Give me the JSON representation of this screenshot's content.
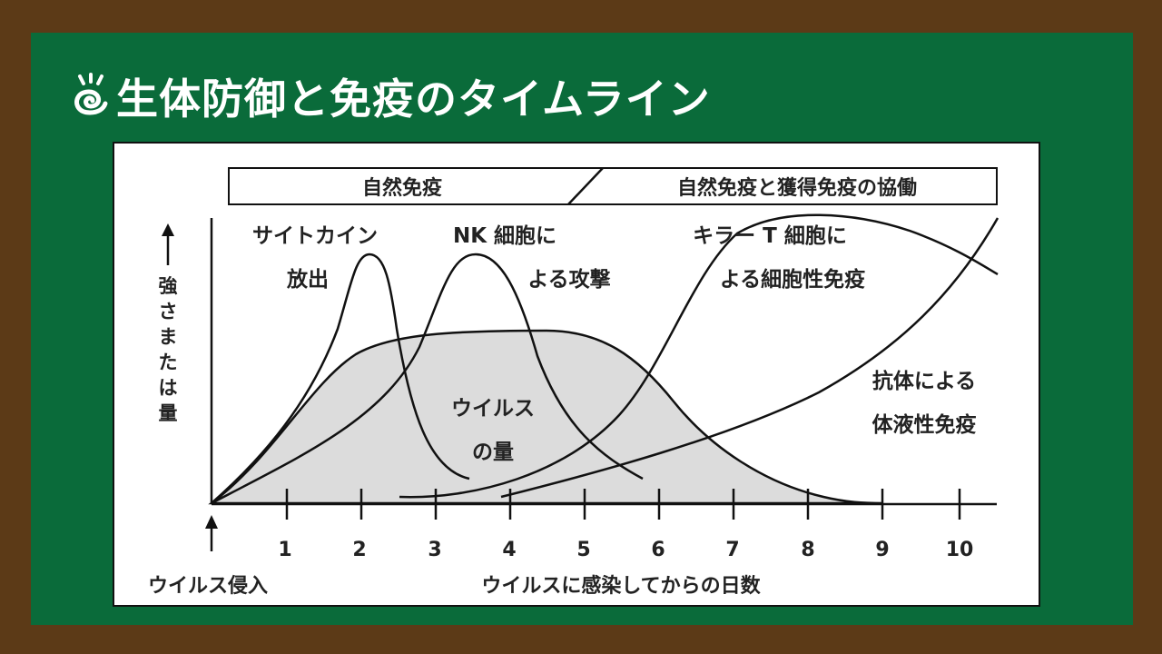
{
  "title": {
    "icon": "snail-icon",
    "text": "生体防御と免疫のタイムライン"
  },
  "phase_bar": {
    "left": "自然免疫",
    "right": "自然免疫と獲得免疫の協働"
  },
  "y_axis_label": [
    "強",
    "さ",
    "ま",
    "た",
    "は",
    "量"
  ],
  "x_axis_ticks": [
    "1",
    "2",
    "3",
    "4",
    "5",
    "6",
    "7",
    "8",
    "9",
    "10"
  ],
  "x_axis_label": "ウイルスに感染してからの日数",
  "origin_label": "ウイルス侵入",
  "curve_labels": {
    "cytokine": [
      "サイトカイン",
      "放出"
    ],
    "nk": [
      "NK 細胞に",
      "よる攻撃"
    ],
    "killer_t": [
      "キラー T 細胞に",
      "よる細胞性免疫"
    ],
    "antibody": [
      "抗体による",
      "体液性免疫"
    ],
    "virus": [
      "ウイルス",
      "の量"
    ]
  },
  "colors": {
    "board": "#0a6b3a",
    "frame": "#5c3a17",
    "virus_fill": "#dcdcdc"
  }
}
